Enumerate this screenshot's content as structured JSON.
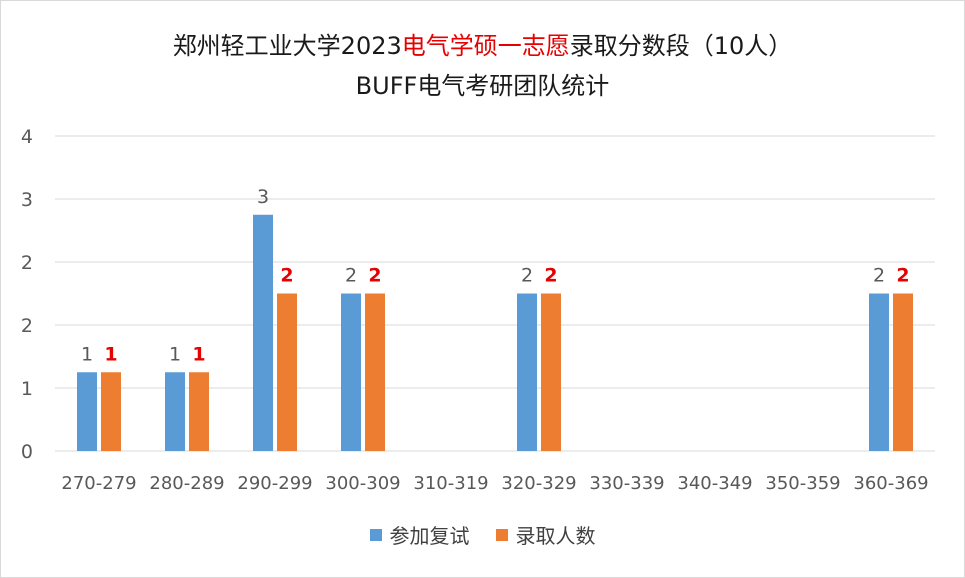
{
  "title": {
    "line1_part1": "郑州轻工业大学2023",
    "line1_highlight": "电气学硕一志愿",
    "line1_part2": "录取分数段（10人）",
    "line2": "BUFF电气考研团队统计"
  },
  "colors": {
    "series1": "#5b9bd5",
    "series2": "#ed7d31",
    "highlight_text": "#e60000",
    "gridline": "#d9d9d9",
    "axis_text": "#595959"
  },
  "legend": [
    {
      "label": "参加复试"
    },
    {
      "label": "录取人数"
    }
  ],
  "chart_data": {
    "type": "bar",
    "title": "郑州轻工业大学2023电气学硕一志愿录取分数段（10人） BUFF电气考研团队统计",
    "categories": [
      "270-279",
      "280-289",
      "290-299",
      "300-309",
      "310-319",
      "320-329",
      "330-339",
      "340-349",
      "350-359",
      "360-369"
    ],
    "series": [
      {
        "name": "参加复试",
        "values": [
          1,
          1,
          3,
          2,
          0,
          2,
          0,
          0,
          0,
          2
        ],
        "labels": [
          "1",
          "1",
          "3",
          "2",
          "",
          "2",
          "",
          "",
          "",
          "2"
        ]
      },
      {
        "name": "录取人数",
        "values": [
          1,
          1,
          2,
          2,
          0,
          2,
          0,
          0,
          0,
          2
        ],
        "labels": [
          "1",
          "1",
          "2",
          "2",
          "",
          "2",
          "",
          "",
          "",
          "2"
        ]
      }
    ],
    "yticks": [
      "0",
      "1",
      "2",
      "2",
      "3",
      "4"
    ],
    "ylim": [
      0,
      4
    ],
    "grid": true,
    "legend_position": "bottom"
  }
}
